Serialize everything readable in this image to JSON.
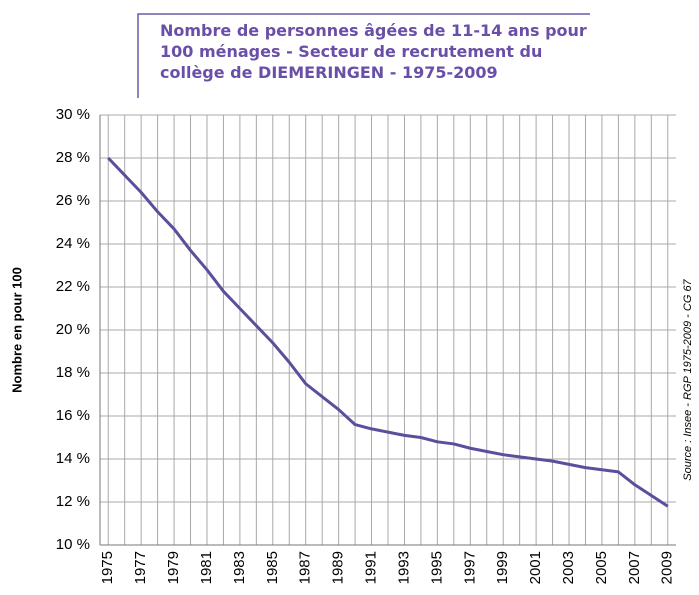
{
  "chart_data": {
    "type": "line",
    "title": "Nombre de personnes âgées de 11-14 ans pour 100 ménages - Secteur de recrutement du collège de DIEMERINGEN - 1975-2009",
    "y_label": "Nombre en pour 100",
    "source": "Source : Insee - RGP 1975-2009 - CG 67",
    "x": [
      1975,
      1976,
      1977,
      1978,
      1979,
      1980,
      1981,
      1982,
      1983,
      1984,
      1985,
      1986,
      1987,
      1988,
      1989,
      1990,
      1991,
      1992,
      1993,
      1994,
      1995,
      1996,
      1997,
      1998,
      1999,
      2000,
      2001,
      2002,
      2003,
      2004,
      2005,
      2006,
      2007,
      2008,
      2009
    ],
    "series": [
      {
        "name": "Nombre en pour 100",
        "color": "#5a4f9c",
        "values": [
          28.0,
          27.2,
          26.4,
          25.5,
          24.7,
          23.7,
          22.8,
          21.8,
          21.0,
          20.2,
          19.4,
          18.5,
          17.5,
          16.9,
          16.3,
          15.6,
          15.4,
          15.25,
          15.1,
          15.0,
          14.8,
          14.7,
          14.5,
          14.35,
          14.2,
          14.1,
          14.0,
          13.9,
          13.75,
          13.6,
          13.5,
          13.4,
          12.8,
          12.3,
          11.8
        ]
      }
    ],
    "xlim": [
      1974.5,
      2009.5
    ],
    "xticks": [
      1975,
      1977,
      1979,
      1981,
      1983,
      1985,
      1987,
      1989,
      1991,
      1993,
      1995,
      1997,
      1999,
      2001,
      2003,
      2005,
      2007,
      2009
    ],
    "ylim": [
      10,
      30
    ],
    "yticks": [
      {
        "value": 10,
        "label": "10 %"
      },
      {
        "value": 12,
        "label": "12 %"
      },
      {
        "value": 14,
        "label": "14 %"
      },
      {
        "value": 16,
        "label": "16 %"
      },
      {
        "value": 18,
        "label": "18 %"
      },
      {
        "value": 20,
        "label": "20 %"
      },
      {
        "value": 22,
        "label": "22 %"
      },
      {
        "value": 24,
        "label": "24 %"
      },
      {
        "value": 26,
        "label": "26 %"
      },
      {
        "value": 28,
        "label": "28 %"
      },
      {
        "value": 30,
        "label": "30 %"
      }
    ],
    "grid": true
  }
}
